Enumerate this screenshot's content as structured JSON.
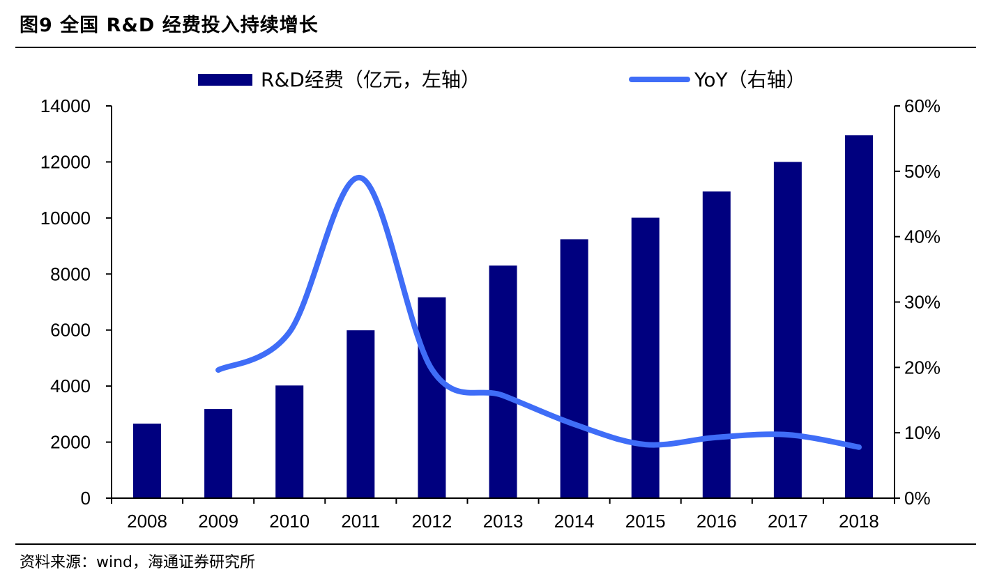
{
  "figure": {
    "title": "图9   全国 R&D 经费投入持续增长",
    "source": "资料来源：wind，海通证券研究所"
  },
  "colors": {
    "bar": "#00007f",
    "line": "#3f6df7",
    "axis": "#000000"
  },
  "chart_data": {
    "type": "bar",
    "title": "图9 全国 R&D 经费投入持续增长",
    "categories": [
      "2008",
      "2009",
      "2010",
      "2011",
      "2012",
      "2013",
      "2014",
      "2015",
      "2016",
      "2017",
      "2018"
    ],
    "series": [
      {
        "name": "R&D经费（亿元，左轴）",
        "type": "bar",
        "axis": "left",
        "values": [
          2660,
          3180,
          4020,
          5990,
          7170,
          8300,
          9240,
          10010,
          10950,
          12000,
          12950
        ]
      },
      {
        "name": "YoY（右轴）",
        "type": "line",
        "axis": "right",
        "values": [
          null,
          0.196,
          0.254,
          0.49,
          0.197,
          0.157,
          0.113,
          0.082,
          0.093,
          0.097,
          0.078
        ]
      }
    ],
    "y_left": {
      "ylim": [
        0,
        14000
      ],
      "ticks": [
        0,
        2000,
        4000,
        6000,
        8000,
        10000,
        12000,
        14000
      ],
      "tick_labels": [
        "0",
        "2000",
        "4000",
        "6000",
        "8000",
        "10000",
        "12000",
        "14000"
      ]
    },
    "y_right": {
      "ylim": [
        0,
        0.6
      ],
      "ticks": [
        0,
        0.1,
        0.2,
        0.3,
        0.4,
        0.5,
        0.6
      ],
      "tick_labels": [
        "0%",
        "10%",
        "20%",
        "30%",
        "40%",
        "50%",
        "60%"
      ]
    },
    "legend": {
      "position": "top",
      "entries": [
        "R&D经费（亿元，左轴）",
        "YoY（右轴）"
      ]
    },
    "grid": false
  }
}
